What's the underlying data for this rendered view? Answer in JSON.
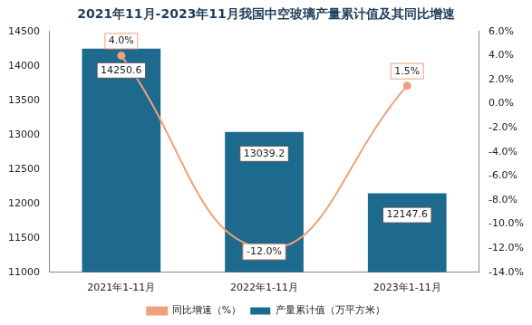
{
  "chart_data": {
    "type": "bar",
    "title": "2021年11月-2023年11月我国中空玻璃产量累计值及其同比增速",
    "categories": [
      "2021年1-11月",
      "2022年1-11月",
      "2023年1-11月"
    ],
    "series": [
      {
        "name": "产量累计值（万平方米）",
        "type": "bar",
        "color": "#1d6a8e",
        "values": [
          14250.6,
          13039.2,
          12147.6
        ]
      },
      {
        "name": "同比增速（%）",
        "type": "line",
        "axis": "y2",
        "color": "#f0a07a",
        "marker": "circle",
        "line_style": "solid",
        "values": [
          4.0,
          -12.0,
          1.5
        ],
        "value_labels": [
          "4.0%",
          "-12.0%",
          "1.5%"
        ]
      }
    ],
    "ylim": [
      11000,
      14500
    ],
    "yticks": [
      11000,
      11500,
      12000,
      12500,
      13000,
      13500,
      14000,
      14500
    ],
    "y2lim": [
      -14,
      6
    ],
    "y2ticks": [
      {
        "value": -14,
        "label": "-14.0%"
      },
      {
        "value": -12,
        "label": "-12.0%"
      },
      {
        "value": -10,
        "label": "-10.0%"
      },
      {
        "value": -8,
        "label": "-8.0%"
      },
      {
        "value": -6,
        "label": "-6.0%"
      },
      {
        "value": -4,
        "label": "-4.0%"
      },
      {
        "value": -2,
        "label": "-2.0%"
      },
      {
        "value": 0,
        "label": "0.0%"
      },
      {
        "value": 2,
        "label": "2.0%"
      },
      {
        "value": 4,
        "label": "4.0%"
      },
      {
        "value": 6,
        "label": "6.0%"
      }
    ],
    "grid": false,
    "legend": "bottom",
    "data_labels": true
  }
}
